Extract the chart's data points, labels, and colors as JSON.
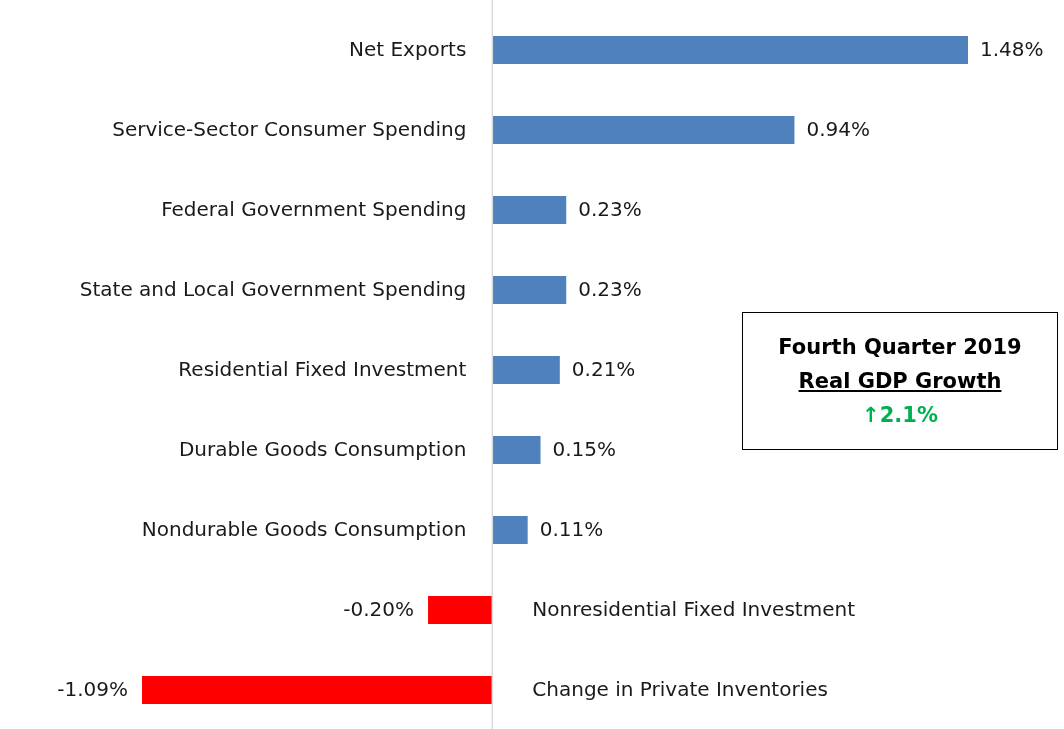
{
  "chart_data": {
    "type": "bar",
    "orientation": "horizontal",
    "categories": [
      "Net Exports",
      "Service-Sector Consumer Spending",
      "Federal Government Spending",
      "State and Local Government Spending",
      "Residential Fixed Investment",
      "Durable Goods Consumption",
      "Nondurable Goods Consumption",
      "Nonresidential Fixed Investment",
      "Change in Private Inventories"
    ],
    "values": [
      1.48,
      0.94,
      0.23,
      0.23,
      0.21,
      0.15,
      0.11,
      -0.2,
      -1.09
    ],
    "value_labels": [
      "1.48%",
      "0.94%",
      "0.23%",
      "0.23%",
      "0.21%",
      "0.15%",
      "0.11%",
      "-0.20%",
      "-1.09%"
    ],
    "colors": [
      "#4f81bd",
      "#4f81bd",
      "#4f81bd",
      "#4f81bd",
      "#4f81bd",
      "#4f81bd",
      "#4f81bd",
      "#ff0000",
      "#ff0000"
    ],
    "annotations": [
      "Fourth Quarter 2019",
      "Real GDP Growth",
      "↑2.1%"
    ]
  }
}
